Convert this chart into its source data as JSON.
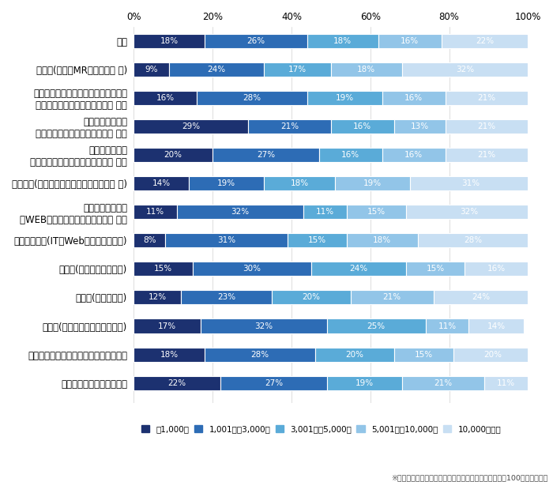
{
  "categories": [
    "全体",
    "営業系(営業、MR、営業企画 他)",
    "企画・事務・マーケティング・管理系\n（経営企画、広報、人事、事務 他）",
    "販売・サービス系\n（ファッション、フード、小売 他）",
    "専門サービス系\n（医療、福祉、教育、ブライダル 他）",
    "専門職系(コンサルタント、金融・不動産 他)",
    "クリエイティブ系\n（WEB・ゲーム制作、プランナー 他）",
    "エンジニア系(IT・Web・ゲーム・通信)",
    "技術系(電気、電子、機械)",
    "技術系(建築、土木)",
    "技術系(医薬、化学、素材、食品)",
    "施設・設備管理、技能工、運輸・物流系",
    "公務員、団体職員、その他"
  ],
  "data": [
    [
      18,
      26,
      18,
      16,
      22
    ],
    [
      9,
      24,
      17,
      18,
      32
    ],
    [
      16,
      28,
      19,
      16,
      21
    ],
    [
      29,
      21,
      16,
      13,
      21
    ],
    [
      20,
      27,
      16,
      16,
      21
    ],
    [
      14,
      19,
      18,
      19,
      31
    ],
    [
      11,
      32,
      11,
      15,
      32
    ],
    [
      8,
      31,
      15,
      18,
      28
    ],
    [
      15,
      30,
      24,
      15,
      16
    ],
    [
      12,
      23,
      20,
      21,
      24
    ],
    [
      17,
      32,
      25,
      11,
      14
    ],
    [
      18,
      28,
      20,
      15,
      20
    ],
    [
      22,
      27,
      19,
      21,
      11
    ]
  ],
  "colors": [
    "#1c3170",
    "#2d6cb5",
    "#5aabd8",
    "#92c5e8",
    "#c8dff3"
  ],
  "text_colors_by_segment": [
    [
      "white",
      "white",
      "white",
      "white",
      "white"
    ],
    [
      "white",
      "white",
      "white",
      "white",
      "white"
    ],
    [
      "white",
      "white",
      "white",
      "white",
      "white"
    ],
    [
      "white",
      "white",
      "white",
      "white",
      "white"
    ],
    [
      "white",
      "white",
      "white",
      "white",
      "white"
    ],
    [
      "white",
      "white",
      "white",
      "white",
      "white"
    ],
    [
      "white",
      "white",
      "white",
      "white",
      "white"
    ],
    [
      "white",
      "white",
      "white",
      "white",
      "white"
    ],
    [
      "white",
      "white",
      "white",
      "white",
      "white"
    ],
    [
      "white",
      "white",
      "white",
      "white",
      "white"
    ],
    [
      "white",
      "white",
      "white",
      "white",
      "white"
    ],
    [
      "white",
      "white",
      "white",
      "white",
      "white"
    ],
    [
      "white",
      "white",
      "white",
      "white",
      "white"
    ]
  ],
  "legend_labels": [
    "～1,000円",
    "1,001円～3,000円",
    "3,001円～5,000円",
    "5,001円～10,000円",
    "10,000円以上"
  ],
  "footnote": "※小数点以下を四捨五入しているため、必ずしも合計が100にならない。",
  "xtick_labels": [
    "0%",
    "20%",
    "40%",
    "60%",
    "80%",
    "100%"
  ],
  "xtick_vals": [
    0,
    20,
    40,
    60,
    80,
    100
  ],
  "bar_height": 0.5,
  "figsize": [
    7.0,
    6.1
  ],
  "dpi": 100
}
